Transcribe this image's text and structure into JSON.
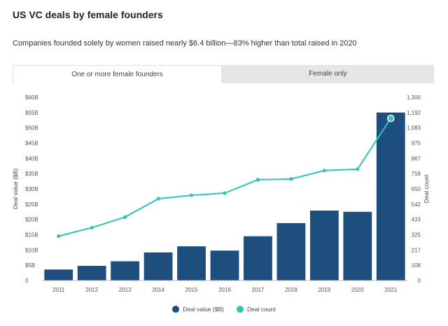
{
  "title": "US VC deals by female founders",
  "subtitle": "Companies founded solely by women raised nearly $6.4 billion—83% higher than total raised in 2020",
  "tabs": [
    {
      "label": "One or more female founders",
      "active": true
    },
    {
      "label": "Female only",
      "active": false
    }
  ],
  "colors": {
    "bar": "#1d4e7e",
    "line": "#2ec4b6"
  },
  "chart_data": {
    "type": "bar",
    "categories": [
      "2011",
      "2012",
      "2013",
      "2014",
      "2015",
      "2016",
      "2017",
      "2018",
      "2019",
      "2020",
      "2021"
    ],
    "series": [
      {
        "name": "Deal value ($B)",
        "type": "bar",
        "axis": "left",
        "values": [
          3.6,
          4.8,
          6.3,
          9.2,
          11.2,
          9.8,
          14.5,
          18.8,
          22.9,
          22.5,
          55.0
        ]
      },
      {
        "name": "Deal count",
        "type": "line",
        "axis": "right",
        "values": [
          315,
          375,
          450,
          580,
          605,
          620,
          715,
          720,
          780,
          790,
          1150
        ]
      }
    ],
    "ylabel": "Deal value ($B)",
    "y2label": "Deal count",
    "ylim": [
      0,
      60
    ],
    "y2lim": [
      0,
      1300
    ],
    "yticks": [
      "0",
      "$5B",
      "$10B",
      "$15B",
      "$20B",
      "$25B",
      "$30B",
      "$35B",
      "$40B",
      "$45B",
      "$50B",
      "$55B",
      "$60B"
    ],
    "y2ticks": [
      "0",
      "108",
      "217",
      "325",
      "433",
      "542",
      "650",
      "758",
      "867",
      "975",
      "1,083",
      "1,192",
      "1,300"
    ],
    "legend": "bottom-center",
    "grid": false
  }
}
